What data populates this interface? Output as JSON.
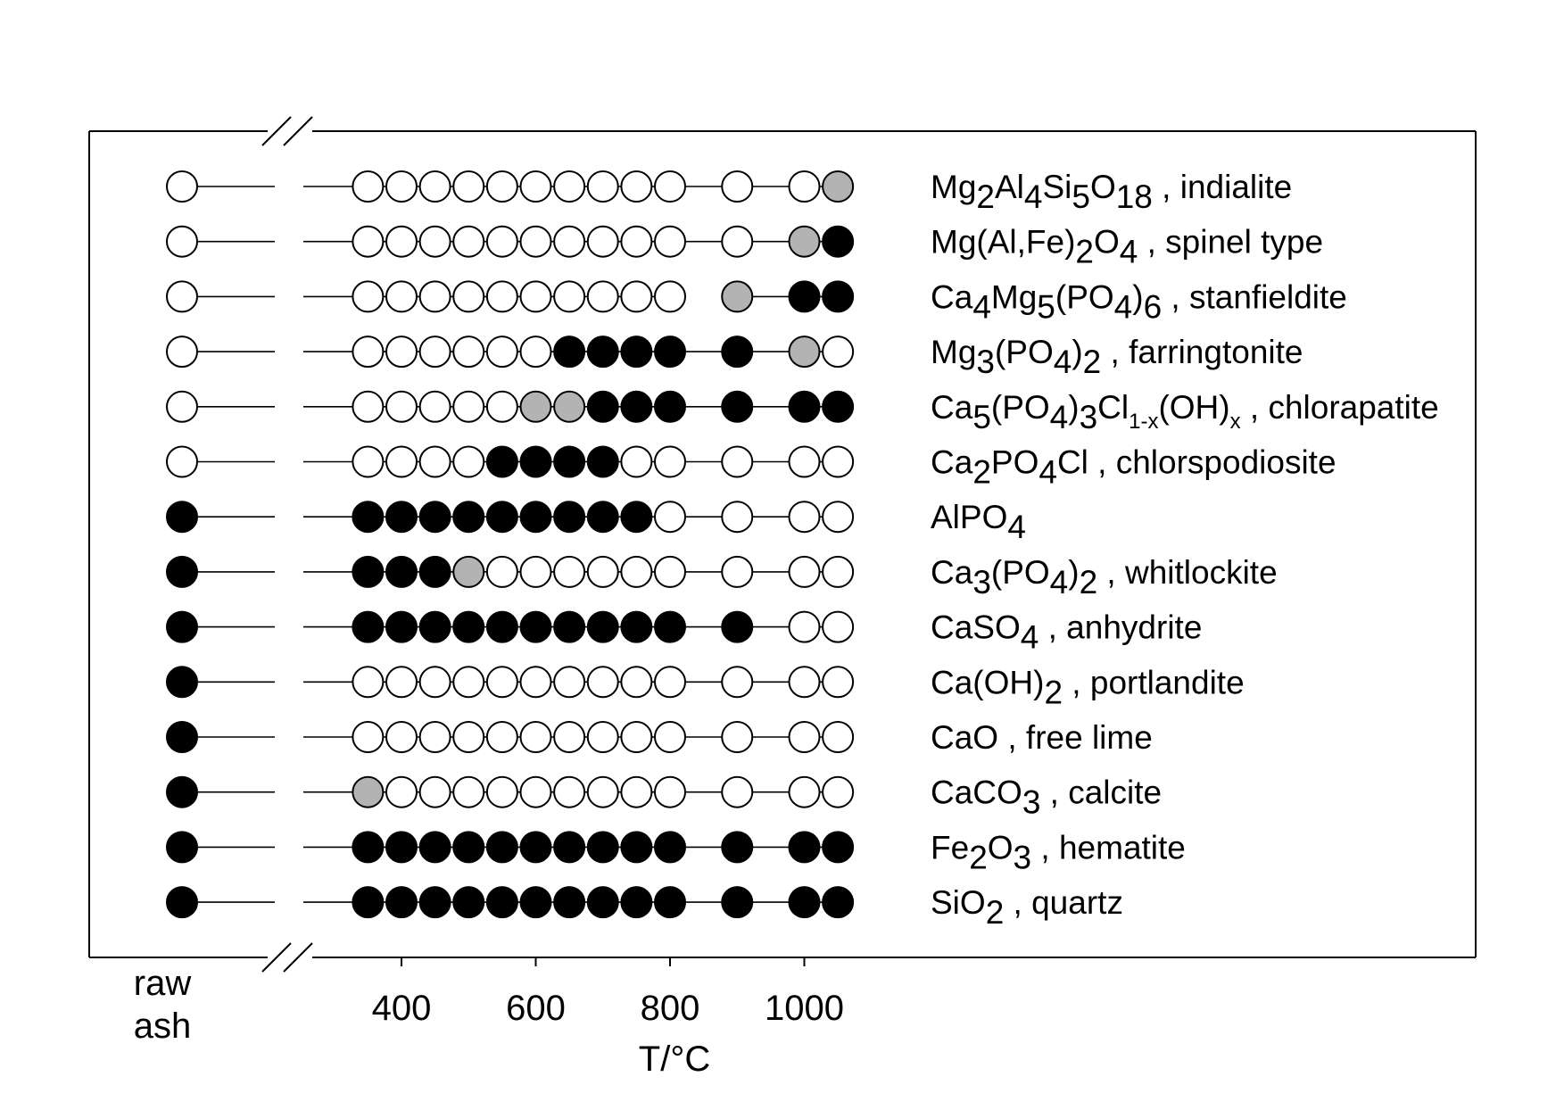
{
  "chart_data": {
    "type": "dot-matrix",
    "xlabel": "T/°C",
    "raw_label": [
      "raw",
      "ash"
    ],
    "x_ticks": [
      400,
      600,
      800,
      1000
    ],
    "x_range": [
      245,
      1080
    ],
    "temperatures": [
      350,
      400,
      450,
      500,
      550,
      600,
      650,
      700,
      750,
      800,
      900,
      1000,
      1050
    ],
    "legend_states": {
      "0": "#ffffff",
      "1": "#000000",
      "2": "#b3b3b3"
    },
    "phases": [
      {
        "label": [
          [
            "Mg",
            ""
          ],
          [
            "2",
            "sub"
          ],
          [
            "Al",
            ""
          ],
          [
            "4",
            "sub"
          ],
          [
            "Si",
            ""
          ],
          [
            "5",
            "sub"
          ],
          [
            "O",
            ""
          ],
          [
            "18",
            "sub"
          ],
          [
            " , indialite",
            ""
          ]
        ],
        "raw": 0,
        "values": [
          0,
          0,
          0,
          0,
          0,
          0,
          0,
          0,
          0,
          0,
          0,
          0,
          2
        ]
      },
      {
        "label": [
          [
            "Mg(Al,Fe)",
            ""
          ],
          [
            "2",
            "sub"
          ],
          [
            "O",
            ""
          ],
          [
            "4",
            "sub"
          ],
          [
            " , spinel type",
            ""
          ]
        ],
        "raw": 0,
        "values": [
          0,
          0,
          0,
          0,
          0,
          0,
          0,
          0,
          0,
          0,
          0,
          2,
          1
        ]
      },
      {
        "label": [
          [
            "Ca",
            ""
          ],
          [
            "4",
            "sub"
          ],
          [
            "Mg",
            ""
          ],
          [
            "5",
            "sub"
          ],
          [
            "(PO",
            ""
          ],
          [
            "4",
            "sub"
          ],
          [
            ")",
            ""
          ],
          [
            "6",
            "sub"
          ],
          [
            " , stanfieldite",
            ""
          ]
        ],
        "raw": 0,
        "values": [
          0,
          0,
          0,
          0,
          0,
          0,
          0,
          0,
          0,
          0,
          2,
          1,
          1
        ],
        "gaps": [
          9
        ]
      },
      {
        "label": [
          [
            "Mg",
            ""
          ],
          [
            "3",
            "sub"
          ],
          [
            "(PO",
            ""
          ],
          [
            "4",
            "sub"
          ],
          [
            ")",
            ""
          ],
          [
            "2",
            "sub"
          ],
          [
            " , farringtonite",
            ""
          ]
        ],
        "raw": 0,
        "values": [
          0,
          0,
          0,
          0,
          0,
          0,
          1,
          1,
          1,
          1,
          1,
          2,
          0
        ]
      },
      {
        "label": [
          [
            "Ca",
            ""
          ],
          [
            "5",
            "sub"
          ],
          [
            "(PO",
            ""
          ],
          [
            "4",
            "sub"
          ],
          [
            ")",
            ""
          ],
          [
            "3",
            "sub"
          ],
          [
            "Cl",
            ""
          ],
          [
            "1-x",
            "subsmall"
          ],
          [
            "(OH)",
            ""
          ],
          [
            "x",
            "subsmall"
          ],
          [
            " , chlorapatite",
            ""
          ]
        ],
        "raw": 0,
        "values": [
          0,
          0,
          0,
          0,
          0,
          2,
          2,
          1,
          1,
          1,
          1,
          1,
          1
        ]
      },
      {
        "label": [
          [
            "Ca",
            ""
          ],
          [
            "2",
            "sub"
          ],
          [
            "PO",
            ""
          ],
          [
            "4",
            "sub"
          ],
          [
            "Cl , chlorspodiosite",
            ""
          ]
        ],
        "raw": 0,
        "values": [
          0,
          0,
          0,
          0,
          1,
          1,
          1,
          1,
          0,
          0,
          0,
          0,
          0
        ]
      },
      {
        "label": [
          [
            "AlPO",
            ""
          ],
          [
            "4",
            "sub"
          ]
        ],
        "raw": 1,
        "values": [
          1,
          1,
          1,
          1,
          1,
          1,
          1,
          1,
          1,
          0,
          0,
          0,
          0
        ]
      },
      {
        "label": [
          [
            "Ca",
            ""
          ],
          [
            "3",
            "sub"
          ],
          [
            "(PO",
            ""
          ],
          [
            "4",
            "sub"
          ],
          [
            ")",
            ""
          ],
          [
            "2",
            "sub"
          ],
          [
            " , whitlockite",
            ""
          ]
        ],
        "raw": 1,
        "values": [
          1,
          1,
          1,
          2,
          0,
          0,
          0,
          0,
          0,
          0,
          0,
          0,
          0
        ]
      },
      {
        "label": [
          [
            "CaSO",
            ""
          ],
          [
            "4",
            "sub"
          ],
          [
            " , anhydrite",
            ""
          ]
        ],
        "raw": 1,
        "values": [
          1,
          1,
          1,
          1,
          1,
          1,
          1,
          1,
          1,
          1,
          1,
          0,
          0
        ]
      },
      {
        "label": [
          [
            "Ca(OH)",
            ""
          ],
          [
            "2",
            "sub"
          ],
          [
            " , portlandite",
            ""
          ]
        ],
        "raw": 1,
        "values": [
          0,
          0,
          0,
          0,
          0,
          0,
          0,
          0,
          0,
          0,
          0,
          0,
          0
        ]
      },
      {
        "label": [
          [
            "CaO , free lime",
            ""
          ]
        ],
        "raw": 1,
        "values": [
          0,
          0,
          0,
          0,
          0,
          0,
          0,
          0,
          0,
          0,
          0,
          0,
          0
        ]
      },
      {
        "label": [
          [
            "CaCO",
            ""
          ],
          [
            "3",
            "sub"
          ],
          [
            " , calcite",
            ""
          ]
        ],
        "raw": 1,
        "values": [
          2,
          0,
          0,
          0,
          0,
          0,
          0,
          0,
          0,
          0,
          0,
          0,
          0
        ]
      },
      {
        "label": [
          [
            "Fe",
            ""
          ],
          [
            "2",
            "sub"
          ],
          [
            "O",
            ""
          ],
          [
            "3",
            "sub"
          ],
          [
            " , hematite",
            ""
          ]
        ],
        "raw": 1,
        "values": [
          1,
          1,
          1,
          1,
          1,
          1,
          1,
          1,
          1,
          1,
          1,
          1,
          1
        ]
      },
      {
        "label": [
          [
            "SiO",
            ""
          ],
          [
            "2",
            "sub"
          ],
          [
            " , quartz",
            ""
          ]
        ],
        "raw": 1,
        "values": [
          1,
          1,
          1,
          1,
          1,
          1,
          1,
          1,
          1,
          1,
          1,
          1,
          1
        ]
      }
    ]
  }
}
